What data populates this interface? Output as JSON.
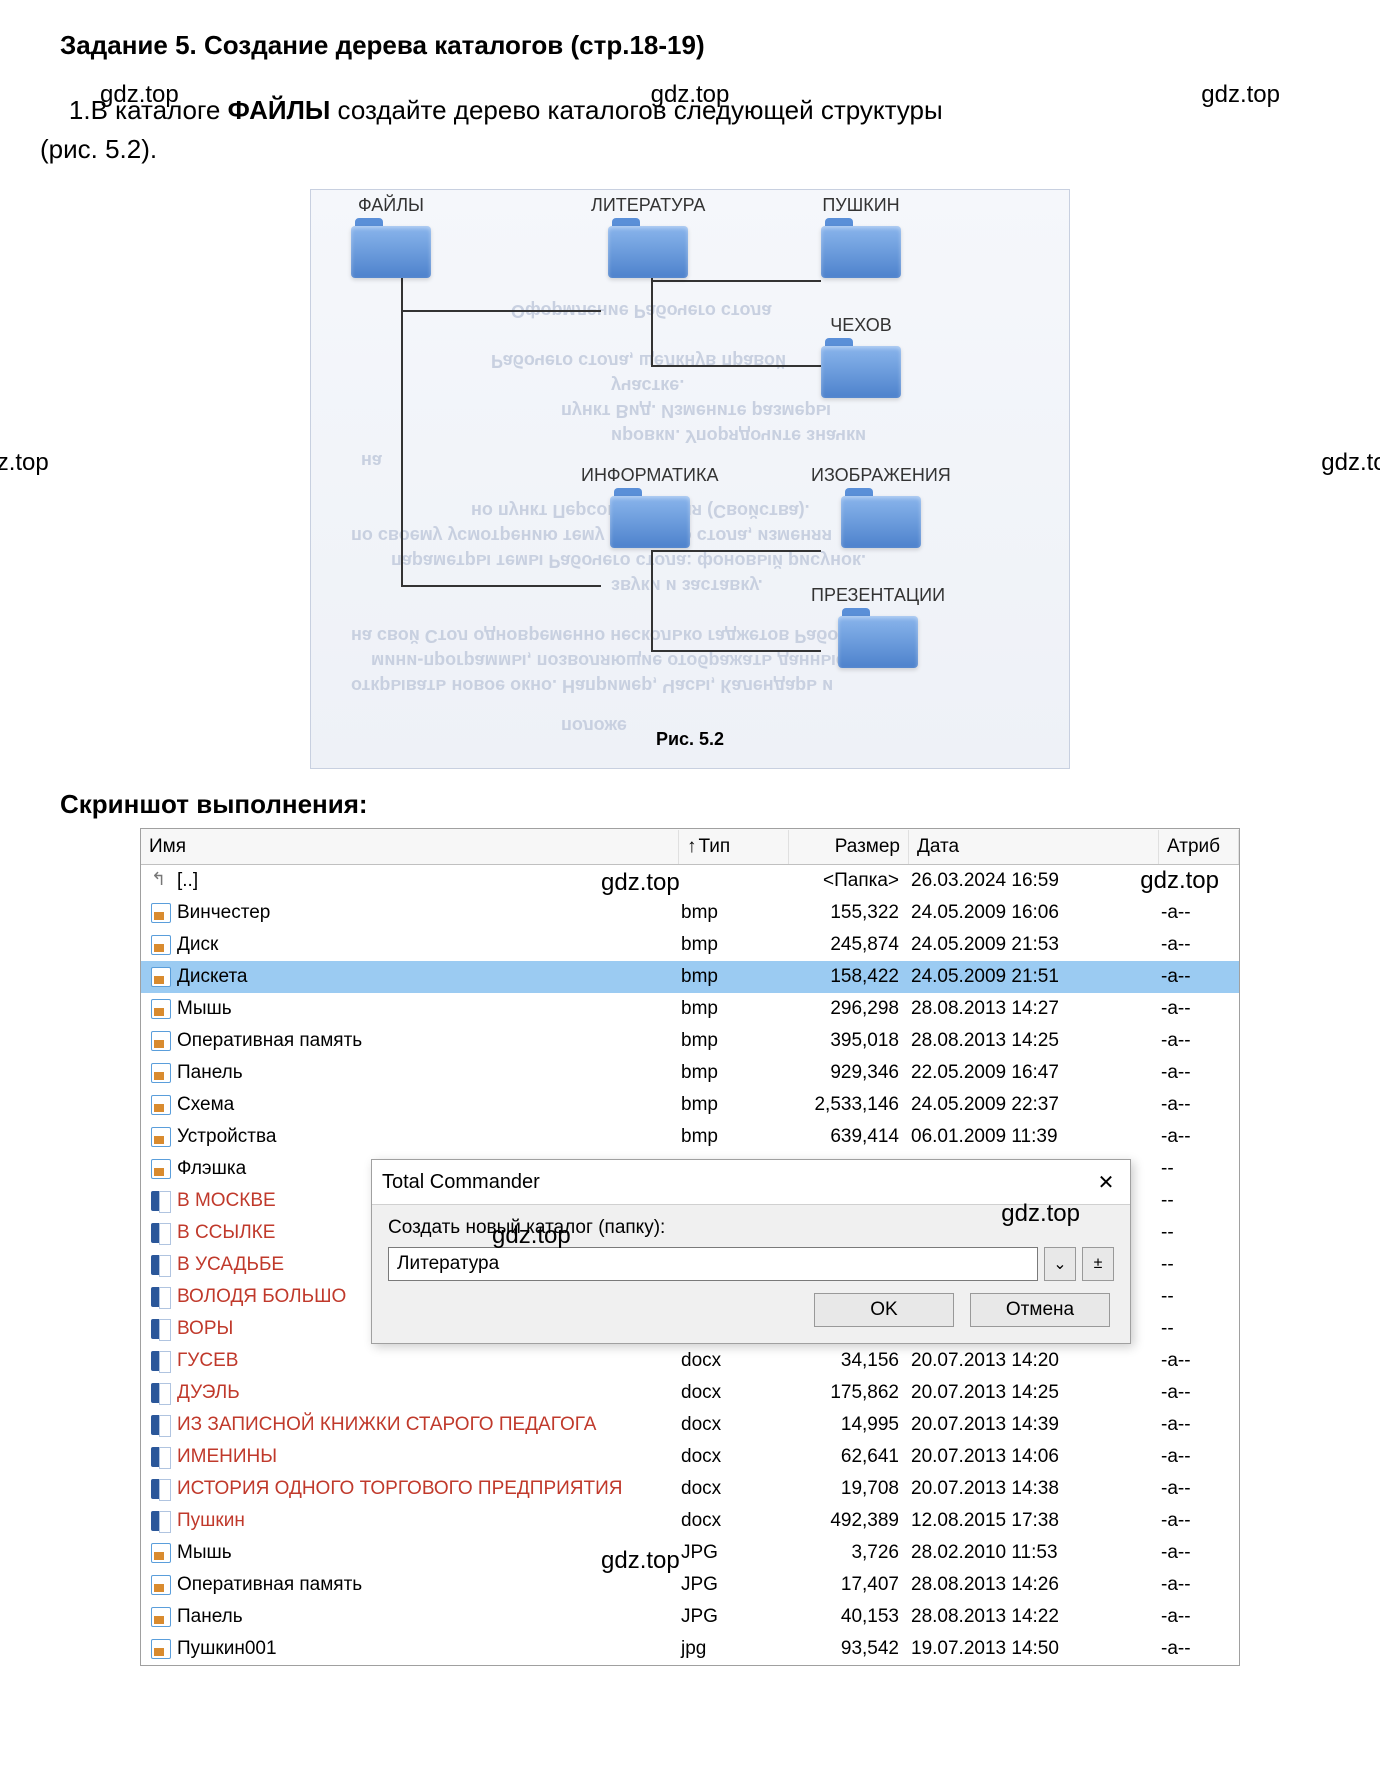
{
  "heading": "Задание 5. Создание дерева каталогов (стр.18-19)",
  "watermark": "gdz.top",
  "task_line1": "1.В каталоге ФАЙЛЫ создайте дерево каталогов следующей структуры",
  "task_prefix": "1.В каталоге ",
  "task_bold": "ФАЙЛЫ",
  "task_suffix1": " создайте дерево каталогов следующей структуры",
  "task_line2": "(рис. 5.2).",
  "diagram": {
    "folders": {
      "files": "ФАЙЛЫ",
      "literature": "ЛИТЕРАТУРА",
      "pushkin": "ПУШКИН",
      "chekhov": "ЧЕХОВ",
      "informatics": "ИНФОРМАТИКА",
      "images": "ИЗОБРАЖЕНИЯ",
      "presentations": "ПРЕЗЕНТАЦИИ"
    },
    "caption": "Рис. 5.2",
    "bg_texts": [
      "Оформление Рабочего стола",
      "Рабочего стола, щелкнув правой",
      "участке.",
      "пункт Вид. Измените размеры",
      "ировки. Упорядочите значки",
      "на",
      "но пункт Персонализация (Свойства).",
      "по своему усмотрению тему Рабочего стола, изменяя",
      "параметры темы Рабочего стола: фоновый рисунок.",
      "звуки и заставку.",
      "на свой Стол одновременно несколько гаджетов Рабочего",
      "мини-программы, позволяющие отображать данные",
      "открывать новое окно. Например, Часы, Календарь и",
      "положе"
    ]
  },
  "subheading": "Скриншот выполнения:",
  "panel": {
    "headers": {
      "name": "Имя",
      "type": "Тип",
      "size": "Размер",
      "date": "Дата",
      "attr": "Атриб"
    },
    "rows": [
      {
        "icon": "folder-up",
        "name": "[..]",
        "type": "",
        "size": "<Папка>",
        "date": "26.03.2024 16:59",
        "attr": "",
        "selected": false,
        "red": false
      },
      {
        "icon": "bmp",
        "name": "Винчестер",
        "type": "bmp",
        "size": "155,322",
        "date": "24.05.2009 16:06",
        "attr": "-a--",
        "selected": false,
        "red": false
      },
      {
        "icon": "bmp",
        "name": "Диск",
        "type": "bmp",
        "size": "245,874",
        "date": "24.05.2009 21:53",
        "attr": "-a--",
        "selected": false,
        "red": false
      },
      {
        "icon": "bmp",
        "name": "Дискета",
        "type": "bmp",
        "size": "158,422",
        "date": "24.05.2009 21:51",
        "attr": "-a--",
        "selected": true,
        "red": false
      },
      {
        "icon": "bmp",
        "name": "Мышь",
        "type": "bmp",
        "size": "296,298",
        "date": "28.08.2013 14:27",
        "attr": "-a--",
        "selected": false,
        "red": false
      },
      {
        "icon": "bmp",
        "name": "Оперативная память",
        "type": "bmp",
        "size": "395,018",
        "date": "28.08.2013 14:25",
        "attr": "-a--",
        "selected": false,
        "red": false
      },
      {
        "icon": "bmp",
        "name": "Панель",
        "type": "bmp",
        "size": "929,346",
        "date": "22.05.2009 16:47",
        "attr": "-a--",
        "selected": false,
        "red": false
      },
      {
        "icon": "bmp",
        "name": "Схема",
        "type": "bmp",
        "size": "2,533,146",
        "date": "24.05.2009 22:37",
        "attr": "-a--",
        "selected": false,
        "red": false
      },
      {
        "icon": "bmp",
        "name": "Устройства",
        "type": "bmp",
        "size": "639,414",
        "date": "06.01.2009 11:39",
        "attr": "-a--",
        "selected": false,
        "red": false
      },
      {
        "icon": "bmp",
        "name": "Флэшка",
        "type": "",
        "size": "",
        "date": "",
        "attr": "--",
        "selected": false,
        "red": false
      },
      {
        "icon": "docx",
        "name": "В МОСКВЕ",
        "type": "",
        "size": "",
        "date": "",
        "attr": "--",
        "selected": false,
        "red": true
      },
      {
        "icon": "docx",
        "name": "В ССЫЛКЕ",
        "type": "",
        "size": "",
        "date": "",
        "attr": "--",
        "selected": false,
        "red": true
      },
      {
        "icon": "docx",
        "name": "В УСАДЬБЕ",
        "type": "",
        "size": "",
        "date": "",
        "attr": "--",
        "selected": false,
        "red": true
      },
      {
        "icon": "docx",
        "name": "ВОЛОДЯ БОЛЬШО",
        "type": "",
        "size": "",
        "date": "",
        "attr": "--",
        "selected": false,
        "red": true
      },
      {
        "icon": "docx",
        "name": "ВОРЫ",
        "type": "",
        "size": "",
        "date": "",
        "attr": "--",
        "selected": false,
        "red": true
      },
      {
        "icon": "docx",
        "name": "ГУСЕВ",
        "type": "docx",
        "size": "34,156",
        "date": "20.07.2013 14:20",
        "attr": "-a--",
        "selected": false,
        "red": true
      },
      {
        "icon": "docx",
        "name": "ДУЭЛЬ",
        "type": "docx",
        "size": "175,862",
        "date": "20.07.2013 14:25",
        "attr": "-a--",
        "selected": false,
        "red": true
      },
      {
        "icon": "docx",
        "name": "ИЗ ЗАПИСНОЙ КНИЖКИ СТАРОГО ПЕДАГОГА",
        "type": "docx",
        "size": "14,995",
        "date": "20.07.2013 14:39",
        "attr": "-a--",
        "selected": false,
        "red": true
      },
      {
        "icon": "docx",
        "name": "ИМЕНИНЫ",
        "type": "docx",
        "size": "62,641",
        "date": "20.07.2013 14:06",
        "attr": "-a--",
        "selected": false,
        "red": true
      },
      {
        "icon": "docx",
        "name": "ИСТОРИЯ ОДНОГО ТОРГОВОГО ПРЕДПРИЯТИЯ",
        "type": "docx",
        "size": "19,708",
        "date": "20.07.2013 14:38",
        "attr": "-a--",
        "selected": false,
        "red": true
      },
      {
        "icon": "docx",
        "name": "Пушкин",
        "type": "docx",
        "size": "492,389",
        "date": "12.08.2015 17:38",
        "attr": "-a--",
        "selected": false,
        "red": true
      },
      {
        "icon": "jpg",
        "name": "Мышь",
        "type": "JPG",
        "size": "3,726",
        "date": "28.02.2010 11:53",
        "attr": "-a--",
        "selected": false,
        "red": false
      },
      {
        "icon": "jpg",
        "name": "Оперативная память",
        "type": "JPG",
        "size": "17,407",
        "date": "28.08.2013 14:26",
        "attr": "-a--",
        "selected": false,
        "red": false
      },
      {
        "icon": "jpg",
        "name": "Панель",
        "type": "JPG",
        "size": "40,153",
        "date": "28.08.2013 14:22",
        "attr": "-a--",
        "selected": false,
        "red": false
      },
      {
        "icon": "jpg",
        "name": "Пушкин001",
        "type": "jpg",
        "size": "93,542",
        "date": "19.07.2013 14:50",
        "attr": "-a--",
        "selected": false,
        "red": false
      }
    ]
  },
  "dialog": {
    "title": "Total Commander",
    "prompt": "Создать новый каталог (папку):",
    "value": "Литература",
    "ok": "OK",
    "cancel": "Отмена",
    "close": "✕",
    "dropdown": "⌄",
    "plus": "±"
  }
}
